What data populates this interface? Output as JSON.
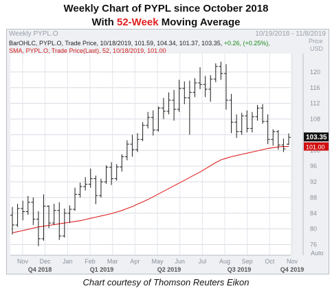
{
  "header": {
    "title_line1": "Weekly Chart of PYPL since October 2018",
    "title_line2_pre": "With ",
    "title_line2_highlight": "52-Week",
    "title_line2_post": " Moving Average",
    "panel_name": "Weekly PYPL.O",
    "date_range": "10/19/2018 - 11/8/2019",
    "price_label": "Price",
    "currency_label": "USD"
  },
  "legend": {
    "bar_line": "BarOHLC, PYPL.O, Trade Price, 10/18/2019, 101.59, 104.34, 101.37, 103.35,",
    "bar_change": " +0.26, (+0.25%),",
    "sma_line": "SMA, PYPL.O, Trade Price(Last), 52, 10/18/2019, 101.00"
  },
  "caption": "Chart courtesy of Thomson Reuters Eikon",
  "colors": {
    "bar": "#1a1a1a",
    "sma": "#e01e1e",
    "last_badge": "#111111",
    "sma_badge": "#d01010",
    "accent": "#e01e1e"
  },
  "chart_data": {
    "type": "ohlc",
    "ylim": [
      74,
      124
    ],
    "yticks": [
      76,
      80,
      84,
      88,
      92,
      96,
      100,
      104,
      108,
      112,
      116,
      120
    ],
    "months": [
      "Nov",
      "Dec",
      "Jan",
      "Feb",
      "Mar",
      "Apr",
      "May",
      "Jun",
      "Jul",
      "Aug",
      "Sep",
      "Oct",
      "Nov"
    ],
    "quarters": [
      "Q4 2018",
      "Q1 2019",
      "Q2 2019",
      "Q3 2019",
      "Q4 2019"
    ],
    "auto_label": "Auto",
    "last_price_badge": "103.35",
    "sma_badge": "101.00",
    "bars": [
      [
        83.5,
        85.6,
        78.6,
        81.0
      ],
      [
        81.0,
        86.4,
        80.5,
        85.2
      ],
      [
        85.2,
        87.2,
        82.2,
        84.4
      ],
      [
        84.4,
        88.4,
        83.6,
        86.8
      ],
      [
        86.8,
        88.0,
        81.0,
        82.5
      ],
      [
        82.5,
        84.5,
        75.6,
        77.5
      ],
      [
        77.5,
        88.8,
        77.0,
        85.8
      ],
      [
        85.8,
        86.0,
        80.2,
        81.5
      ],
      [
        81.5,
        86.4,
        81.0,
        84.7
      ],
      [
        84.7,
        86.8,
        77.2,
        78.2
      ],
      [
        78.2,
        85.2,
        77.8,
        84.0
      ],
      [
        84.0,
        86.0,
        81.5,
        85.0
      ],
      [
        85.0,
        90.5,
        84.6,
        88.8
      ],
      [
        88.8,
        91.8,
        88.0,
        90.8
      ],
      [
        90.8,
        93.2,
        89.8,
        91.4
      ],
      [
        91.4,
        95.4,
        90.5,
        92.8
      ],
      [
        92.8,
        93.6,
        86.3,
        88.5
      ],
      [
        88.5,
        92.8,
        88.0,
        92.0
      ],
      [
        92.0,
        96.2,
        91.5,
        95.7
      ],
      [
        95.7,
        97.0,
        91.2,
        92.8
      ],
      [
        92.8,
        96.5,
        92.3,
        95.8
      ],
      [
        95.8,
        99.0,
        94.6,
        98.4
      ],
      [
        98.4,
        102.6,
        97.5,
        101.6
      ],
      [
        101.6,
        104.0,
        98.4,
        100.2
      ],
      [
        100.2,
        104.4,
        99.6,
        102.8
      ],
      [
        102.8,
        107.2,
        102.4,
        106.4
      ],
      [
        106.4,
        109.8,
        105.6,
        108.4
      ],
      [
        108.4,
        110.2,
        103.8,
        105.2
      ],
      [
        105.2,
        111.2,
        104.8,
        110.8
      ],
      [
        110.8,
        113.4,
        108.0,
        110.0
      ],
      [
        110.0,
        114.8,
        109.2,
        112.8
      ],
      [
        112.8,
        115.4,
        107.6,
        110.5
      ],
      [
        110.5,
        118.0,
        109.8,
        115.8
      ],
      [
        115.8,
        117.6,
        111.8,
        113.4
      ],
      [
        113.4,
        117.8,
        104.0,
        114.8
      ],
      [
        114.8,
        118.4,
        113.6,
        117.2
      ],
      [
        117.2,
        121.2,
        115.6,
        116.8
      ],
      [
        116.8,
        119.0,
        113.6,
        115.6
      ],
      [
        115.6,
        119.2,
        112.4,
        118.2
      ],
      [
        118.2,
        122.2,
        117.4,
        121.4
      ],
      [
        121.4,
        122.6,
        118.0,
        119.6
      ],
      [
        119.6,
        122.0,
        110.4,
        112.8
      ],
      [
        112.8,
        114.4,
        104.4,
        107.2
      ],
      [
        107.2,
        109.2,
        103.2,
        104.8
      ],
      [
        104.8,
        109.6,
        104.0,
        108.8
      ],
      [
        108.8,
        110.2,
        104.6,
        105.6
      ],
      [
        105.6,
        109.8,
        104.6,
        108.6
      ],
      [
        108.6,
        111.6,
        107.6,
        110.8
      ],
      [
        110.8,
        111.8,
        106.8,
        107.4
      ],
      [
        107.4,
        109.2,
        101.6,
        102.8
      ],
      [
        102.8,
        105.4,
        101.2,
        104.8
      ],
      [
        104.8,
        105.2,
        100.2,
        101.4
      ],
      [
        101.4,
        103.0,
        99.6,
        100.4
      ],
      [
        101.59,
        104.34,
        101.37,
        103.35
      ]
    ],
    "sma": [
      79.0,
      79.3,
      79.6,
      79.9,
      80.2,
      80.5,
      80.7,
      80.9,
      81.1,
      81.3,
      81.5,
      81.7,
      81.9,
      82.1,
      82.4,
      82.7,
      83.0,
      83.3,
      83.6,
      83.9,
      84.3,
      84.7,
      85.2,
      85.7,
      86.3,
      86.9,
      87.5,
      88.2,
      88.9,
      89.6,
      90.3,
      91.0,
      91.7,
      92.4,
      93.1,
      93.8,
      94.5,
      95.3,
      96.1,
      96.9,
      97.6,
      98.0,
      98.4,
      98.7,
      99.0,
      99.3,
      99.6,
      99.9,
      100.2,
      100.5,
      100.7,
      100.9,
      101.0,
      101.0
    ]
  }
}
